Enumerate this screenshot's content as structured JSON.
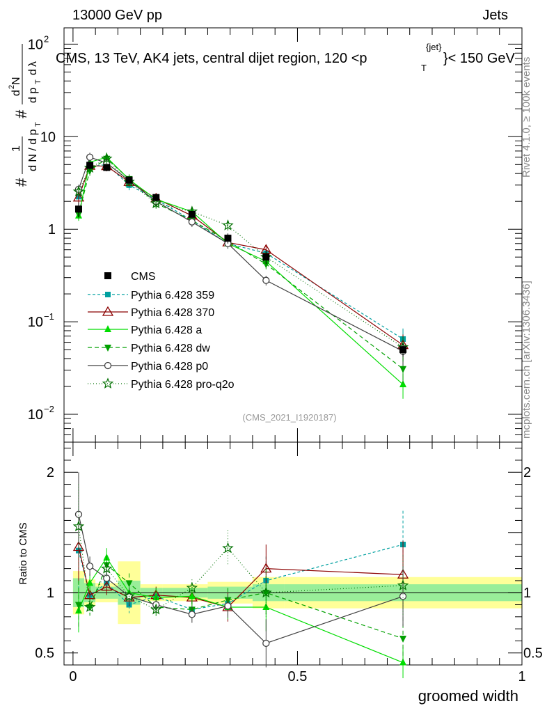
{
  "header": {
    "left": "13000 GeV pp",
    "right": "Jets"
  },
  "side_labels": {
    "rivet": "Rivet 4.1.0, ≥ 100k events",
    "mcplots": "mcplots.cern.ch [arXiv:1306.3436]"
  },
  "chart_data": {
    "type": "line",
    "title": "CMS, 13 TeV, AK4 jets, central dijet region, 120 <p_T^{jet}< 150 GeV",
    "title_main": "CMS, 13 TeV, AK4 jets, central dijet region, 120 <p",
    "title_sup": "{jet}",
    "title_sub": "T",
    "title_tail": "}< 150 GeV",
    "analysis_tag": "(CMS_2021_I1920187)",
    "xlabel": "groomed width",
    "ylabel_main": "1/dN/dp_T # d2N/dp_T dlambda",
    "ylabel_ratio": "Ratio to CMS",
    "xlim": [
      -0.02,
      1.0
    ],
    "ylim_main": [
      0.005,
      150
    ],
    "ylim_ratio": [
      0.4,
      2.25
    ],
    "x_ticks": [
      {
        "value": 0,
        "label": "0"
      },
      {
        "value": 0.5,
        "label": "0.5"
      },
      {
        "value": 1,
        "label": "1"
      }
    ],
    "y_ticks_main": [
      {
        "value": 0.01,
        "base": "10",
        "exp": "−2"
      },
      {
        "value": 0.1,
        "base": "10",
        "exp": "−1"
      },
      {
        "value": 1,
        "base": "1",
        "exp": ""
      },
      {
        "value": 10,
        "base": "10",
        "exp": ""
      },
      {
        "value": 100,
        "base": "10",
        "exp": "2"
      }
    ],
    "y_ticks_ratio": [
      {
        "value": 0.5,
        "label": "0.5"
      },
      {
        "value": 1,
        "label": "1"
      },
      {
        "value": 2,
        "label": "2"
      }
    ],
    "bin_edges": [
      0,
      0.025,
      0.05,
      0.1,
      0.15,
      0.2,
      0.3,
      0.4,
      0.47,
      1.0
    ],
    "x": [
      0.0125,
      0.0375,
      0.075,
      0.125,
      0.185,
      0.265,
      0.345,
      0.43,
      0.735
    ],
    "data": {
      "name": "CMS",
      "values": [
        1.65,
        4.9,
        4.65,
        3.4,
        2.2,
        1.45,
        0.8,
        0.5,
        0.05
      ],
      "errors": [
        0.3,
        0.5,
        0.4,
        0.25,
        0.15,
        0.1,
        0.1,
        0.08,
        0.008
      ],
      "band_inner": [
        0.12,
        0.08,
        0.05,
        0.1,
        0.04,
        0.04,
        0.05,
        0.07,
        0.07
      ],
      "band_outer": [
        0.18,
        0.11,
        0.08,
        0.26,
        0.07,
        0.07,
        0.09,
        0.13,
        0.13
      ]
    },
    "series": [
      {
        "name": "Pythia 6.428 359",
        "color": "#00a0a0",
        "dash": "4,3",
        "marker": "square",
        "values": [
          2.25,
          4.75,
          5.0,
          3.0,
          2.1,
          1.25,
          0.7,
          0.55,
          0.065
        ],
        "ratio": [
          1.35,
          0.98,
          1.08,
          0.9,
          0.97,
          0.86,
          0.91,
          1.1,
          1.4
        ],
        "ratio_err": [
          0.35,
          0.08,
          0.08,
          0.07,
          0.07,
          0.07,
          0.12,
          0.2,
          0.28
        ]
      },
      {
        "name": "Pythia 6.428 370",
        "color": "#8b0000",
        "dash": "",
        "marker": "open-triangle",
        "values": [
          2.2,
          4.85,
          4.8,
          3.25,
          2.15,
          1.4,
          0.72,
          0.6,
          0.056
        ],
        "ratio": [
          1.38,
          0.98,
          1.05,
          0.96,
          0.98,
          0.96,
          0.88,
          1.2,
          1.15
        ],
        "ratio_err": [
          0.3,
          0.07,
          0.07,
          0.07,
          0.07,
          0.07,
          0.12,
          0.2,
          0.28
        ]
      },
      {
        "name": "Pythia 6.428 a",
        "color": "#00dd00",
        "dash": "",
        "marker": "triangle",
        "values": [
          1.4,
          5.3,
          6.0,
          3.45,
          2.1,
          1.55,
          0.7,
          0.45,
          0.021
        ],
        "ratio": [
          0.85,
          1.08,
          1.29,
          1.0,
          0.96,
          0.97,
          0.88,
          0.88,
          0.42
        ],
        "ratio_err": [
          0.18,
          0.08,
          0.08,
          0.08,
          0.08,
          0.08,
          0.1,
          0.2,
          0.13
        ]
      },
      {
        "name": "Pythia 6.428 dw",
        "color": "#00a000",
        "dash": "6,4",
        "marker": "down-triangle",
        "values": [
          1.45,
          4.3,
          5.8,
          3.5,
          1.9,
          1.25,
          0.74,
          0.42,
          0.031
        ],
        "ratio": [
          0.9,
          0.88,
          1.23,
          1.08,
          0.88,
          0.86,
          0.94,
          1.0,
          0.62
        ],
        "ratio_err": [
          0.2,
          0.07,
          0.08,
          0.08,
          0.08,
          0.08,
          0.1,
          0.2,
          0.18
        ]
      },
      {
        "name": "Pythia 6.428 p0",
        "color": "#404040",
        "dash": "",
        "marker": "open-circle",
        "values": [
          2.7,
          6.0,
          5.2,
          3.35,
          2.0,
          1.2,
          0.7,
          0.28,
          0.048
        ],
        "ratio": [
          1.65,
          1.22,
          1.12,
          0.97,
          0.9,
          0.82,
          0.89,
          0.58,
          0.97
        ],
        "ratio_err": [
          0.35,
          0.08,
          0.08,
          0.07,
          0.07,
          0.07,
          0.1,
          0.2,
          0.25
        ]
      },
      {
        "name": "Pythia 6.428 pro-q2o",
        "color": "#007000",
        "dash": "1,3",
        "marker": "star",
        "values": [
          2.55,
          4.6,
          5.8,
          3.25,
          1.9,
          1.55,
          1.1,
          0.5,
          0.053
        ],
        "ratio": [
          1.55,
          0.88,
          1.2,
          0.97,
          0.86,
          1.04,
          1.37,
          1.0,
          1.06
        ],
        "ratio_err": [
          0.35,
          0.07,
          0.08,
          0.07,
          0.07,
          0.07,
          0.15,
          0.2,
          0.25
        ]
      }
    ]
  }
}
